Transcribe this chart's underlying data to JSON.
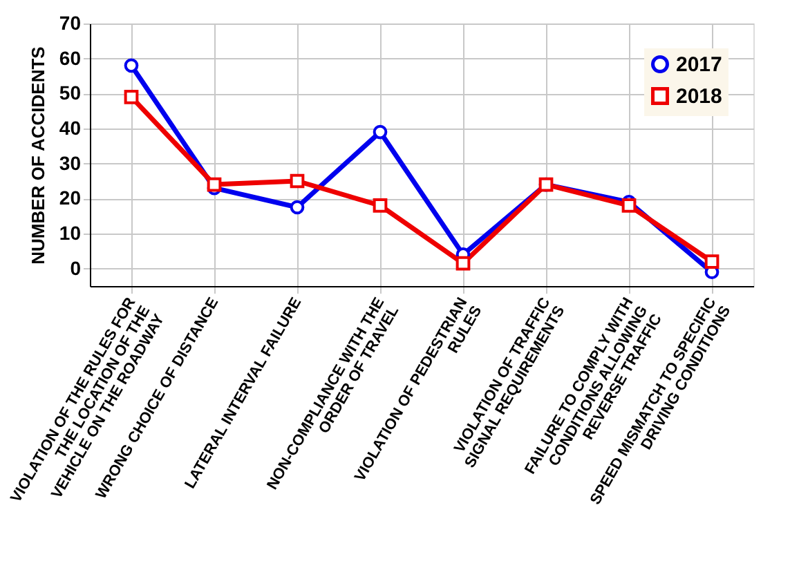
{
  "chart_data": {
    "type": "line",
    "ylabel": "NUMBER OF ACCIDENTS",
    "categories": [
      "VIOLATION OF THE RULES FOR THE LOCATION OF THE VEHICLE ON THE ROADWAY",
      "WRONG CHOICE OF DISTANCE",
      "LATERAL INTERVAL FAILURE",
      "NON-COMPLIANCE WITH THE ORDER OF TRAVEL",
      "VIOLATION OF PEDESTRIAN RULES",
      "VIOLATION OF TRAFFIC SIGNAL REQUIREMENTS",
      "FAILURE TO COMPLY WITH CONDITIONS ALLOWING REVERSE TRAFFIC",
      "SPEED MISMATCH TO SPECIFIC DRIVING CONDITIONS"
    ],
    "series": [
      {
        "name": "2017",
        "color": "#0000ee",
        "marker": "circle",
        "values": [
          58,
          23,
          17.5,
          39,
          4,
          24,
          19,
          -1
        ]
      },
      {
        "name": "2018",
        "color": "#ee0000",
        "marker": "square",
        "values": [
          49,
          24,
          25,
          18,
          1.5,
          24,
          18,
          2
        ]
      }
    ],
    "ylim": [
      -5,
      70
    ],
    "yticks": [
      0,
      10,
      20,
      30,
      40,
      50,
      60,
      70
    ],
    "grid": true,
    "legend": "top right",
    "line_style": "solid"
  }
}
